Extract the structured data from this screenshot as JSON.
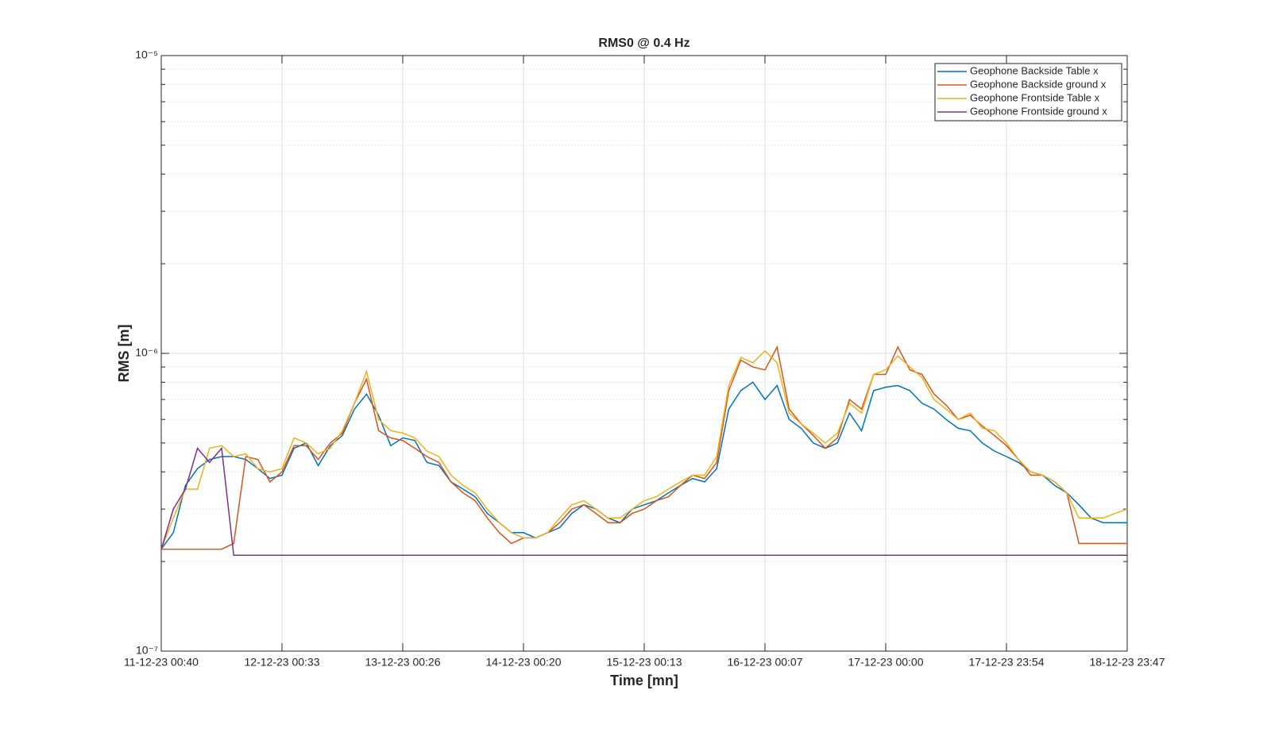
{
  "chart_data": {
    "type": "line",
    "title": "RMS0 @ 0.4 Hz",
    "x_label": "Time [mn]",
    "y_label": "RMS [m]",
    "categories": [
      "11-12-23 00:40",
      null,
      null,
      null,
      null,
      null,
      null,
      null,
      null,
      null,
      "12-12-23 00:33",
      null,
      null,
      null,
      null,
      null,
      null,
      null,
      null,
      null,
      "13-12-23 00:26",
      null,
      null,
      null,
      null,
      null,
      null,
      null,
      null,
      null,
      "14-12-23 00:20",
      null,
      null,
      null,
      null,
      null,
      null,
      null,
      null,
      null,
      "15-12-23 00:13",
      null,
      null,
      null,
      null,
      null,
      null,
      null,
      null,
      null,
      "16-12-23 00:07",
      null,
      null,
      null,
      null,
      null,
      null,
      null,
      null,
      null,
      "17-12-23 00:00",
      null,
      null,
      null,
      null,
      null,
      null,
      null,
      null,
      null,
      "17-12-23 23:54",
      null,
      null,
      null,
      null,
      null,
      null,
      null,
      null,
      null,
      "18-12-23 23:47"
    ],
    "log_y": true,
    "ylim": [
      1e-07,
      1e-05
    ],
    "yticks": [
      {
        "value": 1e-07,
        "label": "10⁻⁷"
      },
      {
        "value": 1e-06,
        "label": "10⁻⁶"
      },
      {
        "value": 1e-05,
        "label": "10⁻⁵"
      }
    ],
    "yminorticks": [
      2e-07,
      3e-07,
      4e-07,
      5e-07,
      6e-07,
      7e-07,
      8e-07,
      9e-07,
      2e-06,
      3e-06,
      4e-06,
      5e-06,
      6e-06,
      7e-06,
      8e-06,
      9e-06
    ],
    "grid": true,
    "legend": "top-right",
    "series": [
      {
        "name": "Geophone Backside Table x",
        "color": "#0072BD",
        "values": [
          2.2e-07,
          2.5e-07,
          3.6e-07,
          4.1e-07,
          4.4e-07,
          4.5e-07,
          4.5e-07,
          4.4e-07,
          4.1e-07,
          3.8e-07,
          3.9e-07,
          4.8e-07,
          5e-07,
          4.2e-07,
          4.9e-07,
          5.3e-07,
          6.5e-07,
          7.3e-07,
          6.2e-07,
          4.9e-07,
          5.2e-07,
          5.1e-07,
          4.3e-07,
          4.2e-07,
          3.7e-07,
          3.5e-07,
          3.3e-07,
          2.9e-07,
          2.7e-07,
          2.5e-07,
          2.5e-07,
          2.4e-07,
          2.5e-07,
          2.6e-07,
          2.9e-07,
          3.1e-07,
          3e-07,
          2.8e-07,
          2.7e-07,
          3e-07,
          3.1e-07,
          3.2e-07,
          3.4e-07,
          3.6e-07,
          3.8e-07,
          3.7e-07,
          4.1e-07,
          6.5e-07,
          7.5e-07,
          8e-07,
          7e-07,
          7.8e-07,
          6e-07,
          5.6e-07,
          5e-07,
          4.8e-07,
          5e-07,
          6.3e-07,
          5.5e-07,
          7.5e-07,
          7.7e-07,
          7.8e-07,
          7.5e-07,
          6.8e-07,
          6.5e-07,
          6e-07,
          5.6e-07,
          5.5e-07,
          5e-07,
          4.7e-07,
          4.5e-07,
          4.3e-07,
          4e-07,
          3.9e-07,
          3.6e-07,
          3.4e-07,
          3.1e-07,
          2.8e-07,
          2.7e-07,
          2.7e-07,
          2.7e-07
        ]
      },
      {
        "name": "Geophone Backside ground x",
        "color": "#D95319",
        "values": [
          2.2e-07,
          2.2e-07,
          2.2e-07,
          2.2e-07,
          2.2e-07,
          2.2e-07,
          2.3e-07,
          4.5e-07,
          4.4e-07,
          3.7e-07,
          4e-07,
          4.9e-07,
          4.9e-07,
          4.4e-07,
          5e-07,
          5.4e-07,
          6.8e-07,
          8.2e-07,
          5.5e-07,
          5.2e-07,
          5.1e-07,
          4.8e-07,
          4.5e-07,
          4.3e-07,
          3.7e-07,
          3.4e-07,
          3.2e-07,
          2.8e-07,
          2.5e-07,
          2.3e-07,
          2.4e-07,
          2.4e-07,
          2.5e-07,
          2.7e-07,
          3e-07,
          3.1e-07,
          2.9e-07,
          2.7e-07,
          2.7e-07,
          2.9e-07,
          3e-07,
          3.2e-07,
          3.3e-07,
          3.6e-07,
          3.9e-07,
          3.8e-07,
          4.3e-07,
          7.5e-07,
          9.5e-07,
          9e-07,
          8.8e-07,
          1.05e-06,
          6.5e-07,
          5.8e-07,
          5.3e-07,
          4.8e-07,
          5.2e-07,
          7e-07,
          6.5e-07,
          8.5e-07,
          8.5e-07,
          1.05e-06,
          8.8e-07,
          8.5e-07,
          7.3e-07,
          6.7e-07,
          6e-07,
          6.2e-07,
          5.7e-07,
          5.3e-07,
          4.9e-07,
          4.4e-07,
          3.9e-07,
          3.9e-07,
          3.7e-07,
          3.4e-07,
          2.3e-07,
          2.3e-07,
          2.3e-07,
          2.3e-07,
          2.3e-07
        ]
      },
      {
        "name": "Geophone Frontside Table x",
        "color": "#EDB120",
        "values": [
          2.2e-07,
          2.8e-07,
          3.5e-07,
          3.5e-07,
          4.8e-07,
          4.9e-07,
          4.5e-07,
          4.6e-07,
          4.1e-07,
          4e-07,
          4.1e-07,
          5.2e-07,
          5e-07,
          4.6e-07,
          4.8e-07,
          5.5e-07,
          6.8e-07,
          8.7e-07,
          6e-07,
          5.5e-07,
          5.4e-07,
          5.2e-07,
          4.7e-07,
          4.5e-07,
          3.9e-07,
          3.6e-07,
          3.4e-07,
          3e-07,
          2.7e-07,
          2.5e-07,
          2.4e-07,
          2.4e-07,
          2.5e-07,
          2.8e-07,
          3.1e-07,
          3.2e-07,
          3e-07,
          2.8e-07,
          2.8e-07,
          3e-07,
          3.2e-07,
          3.3e-07,
          3.5e-07,
          3.7e-07,
          3.9e-07,
          3.9e-07,
          4.5e-07,
          7.8e-07,
          9.7e-07,
          9.3e-07,
          1.02e-06,
          9.3e-07,
          6.3e-07,
          5.8e-07,
          5.4e-07,
          5e-07,
          5.4e-07,
          6.8e-07,
          6.3e-07,
          8.5e-07,
          8.8e-07,
          9.8e-07,
          9e-07,
          8.3e-07,
          7e-07,
          6.5e-07,
          6e-07,
          6.3e-07,
          5.6e-07,
          5.5e-07,
          5e-07,
          4.4e-07,
          4e-07,
          3.9e-07,
          3.7e-07,
          3.4e-07,
          2.8e-07,
          2.8e-07,
          2.8e-07,
          2.9e-07,
          3e-07
        ]
      },
      {
        "name": "Geophone Frontside ground x",
        "color": "#7E2F8E",
        "values": [
          2.2e-07,
          3e-07,
          3.5e-07,
          4.8e-07,
          4.3e-07,
          4.8e-07,
          2.1e-07,
          2.1e-07,
          2.1e-07,
          2.1e-07,
          2.1e-07,
          2.1e-07,
          2.1e-07,
          2.1e-07,
          2.1e-07,
          2.1e-07,
          2.1e-07,
          2.1e-07,
          2.1e-07,
          2.1e-07,
          2.1e-07,
          2.1e-07,
          2.1e-07,
          2.1e-07,
          2.1e-07,
          2.1e-07,
          2.1e-07,
          2.1e-07,
          2.1e-07,
          2.1e-07,
          2.1e-07,
          2.1e-07,
          2.1e-07,
          2.1e-07,
          2.1e-07,
          2.1e-07,
          2.1e-07,
          2.1e-07,
          2.1e-07,
          2.1e-07,
          2.1e-07,
          2.1e-07,
          2.1e-07,
          2.1e-07,
          2.1e-07,
          2.1e-07,
          2.1e-07,
          2.1e-07,
          2.1e-07,
          2.1e-07,
          2.1e-07,
          2.1e-07,
          2.1e-07,
          2.1e-07,
          2.1e-07,
          2.1e-07,
          2.1e-07,
          2.1e-07,
          2.1e-07,
          2.1e-07,
          2.1e-07,
          2.1e-07,
          2.1e-07,
          2.1e-07,
          2.1e-07,
          2.1e-07,
          2.1e-07,
          2.1e-07,
          2.1e-07,
          2.1e-07,
          2.1e-07,
          2.1e-07,
          2.1e-07,
          2.1e-07,
          2.1e-07,
          2.1e-07,
          2.1e-07,
          2.1e-07,
          2.1e-07,
          2.1e-07,
          2.1e-07
        ]
      }
    ]
  }
}
